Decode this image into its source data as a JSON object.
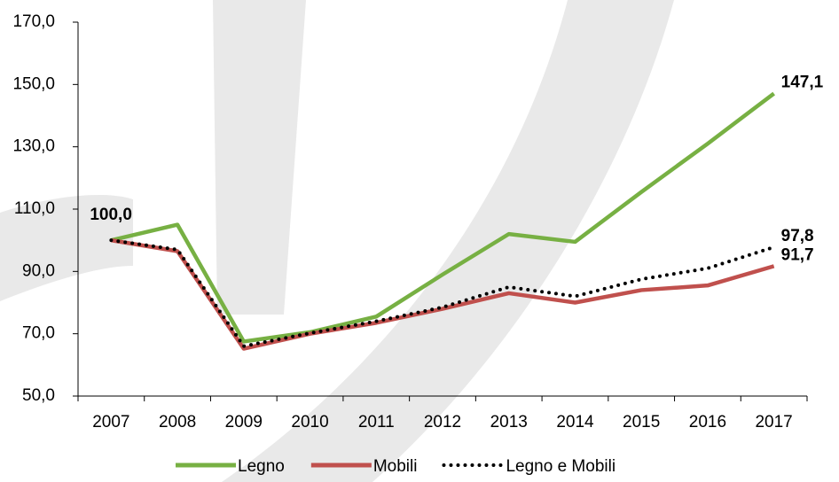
{
  "chart_data": {
    "type": "line",
    "categories": [
      "2007",
      "2008",
      "2009",
      "2010",
      "2011",
      "2012",
      "2013",
      "2014",
      "2015",
      "2016",
      "2017"
    ],
    "series": [
      {
        "name": "Legno",
        "color": "#77b043",
        "style": "solid",
        "values": [
          100,
          105,
          67.5,
          70.5,
          75.5,
          89,
          102,
          99.5,
          115.5,
          131,
          147.1
        ],
        "value_labels": [
          "100,0",
          null,
          null,
          null,
          null,
          null,
          null,
          null,
          null,
          null,
          "147,1"
        ]
      },
      {
        "name": "Mobili",
        "color": "#c0504d",
        "style": "solid",
        "values": [
          100,
          96.5,
          65.2,
          70,
          73.5,
          78,
          83,
          80,
          84,
          85.5,
          91.7
        ],
        "value_labels": [
          null,
          null,
          null,
          null,
          null,
          null,
          null,
          null,
          null,
          null,
          "91,7"
        ]
      },
      {
        "name": "Legno e Mobili",
        "color": "#000000",
        "style": "dotted",
        "values": [
          100,
          97,
          66,
          70.2,
          74,
          78.5,
          85,
          82,
          87.5,
          91,
          97.8
        ],
        "value_labels": [
          null,
          null,
          null,
          null,
          null,
          null,
          null,
          null,
          null,
          null,
          "97,8"
        ]
      }
    ],
    "ylim": [
      50,
      170
    ],
    "yticks": [
      {
        "value": 50,
        "label": "50,0"
      },
      {
        "value": 70,
        "label": "70,0"
      },
      {
        "value": 90,
        "label": "90,0"
      },
      {
        "value": 110,
        "label": "110,0"
      },
      {
        "value": 130,
        "label": "130,0"
      },
      {
        "value": 150,
        "label": "150,0"
      },
      {
        "value": 170,
        "label": "170,0"
      }
    ]
  }
}
